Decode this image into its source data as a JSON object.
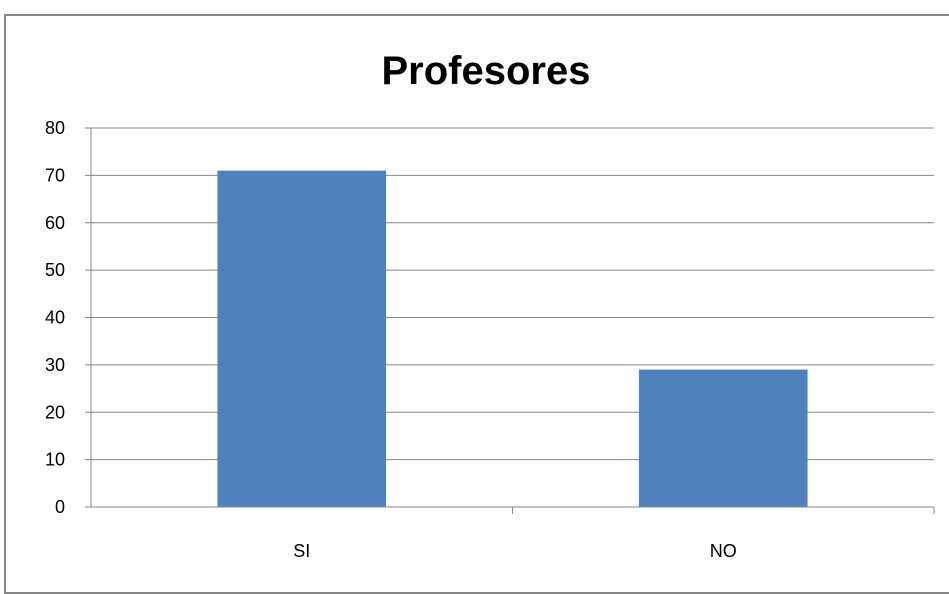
{
  "chart_data": {
    "type": "bar",
    "title": "Profesores",
    "xlabel": "",
    "ylabel": "",
    "categories": [
      "SI",
      "NO"
    ],
    "values": [
      71,
      29
    ],
    "ylim": [
      0,
      80
    ],
    "yticks": [
      "0",
      "10",
      "20",
      "30",
      "40",
      "50",
      "60",
      "70",
      "80"
    ],
    "ytick_values": [
      0,
      10,
      20,
      30,
      40,
      50,
      60,
      70,
      80
    ],
    "grid": true,
    "legend": "none",
    "colors": {
      "bar": "#4f81bd",
      "grid": "#868686",
      "axis": "#868686",
      "frame": "#868686"
    }
  }
}
